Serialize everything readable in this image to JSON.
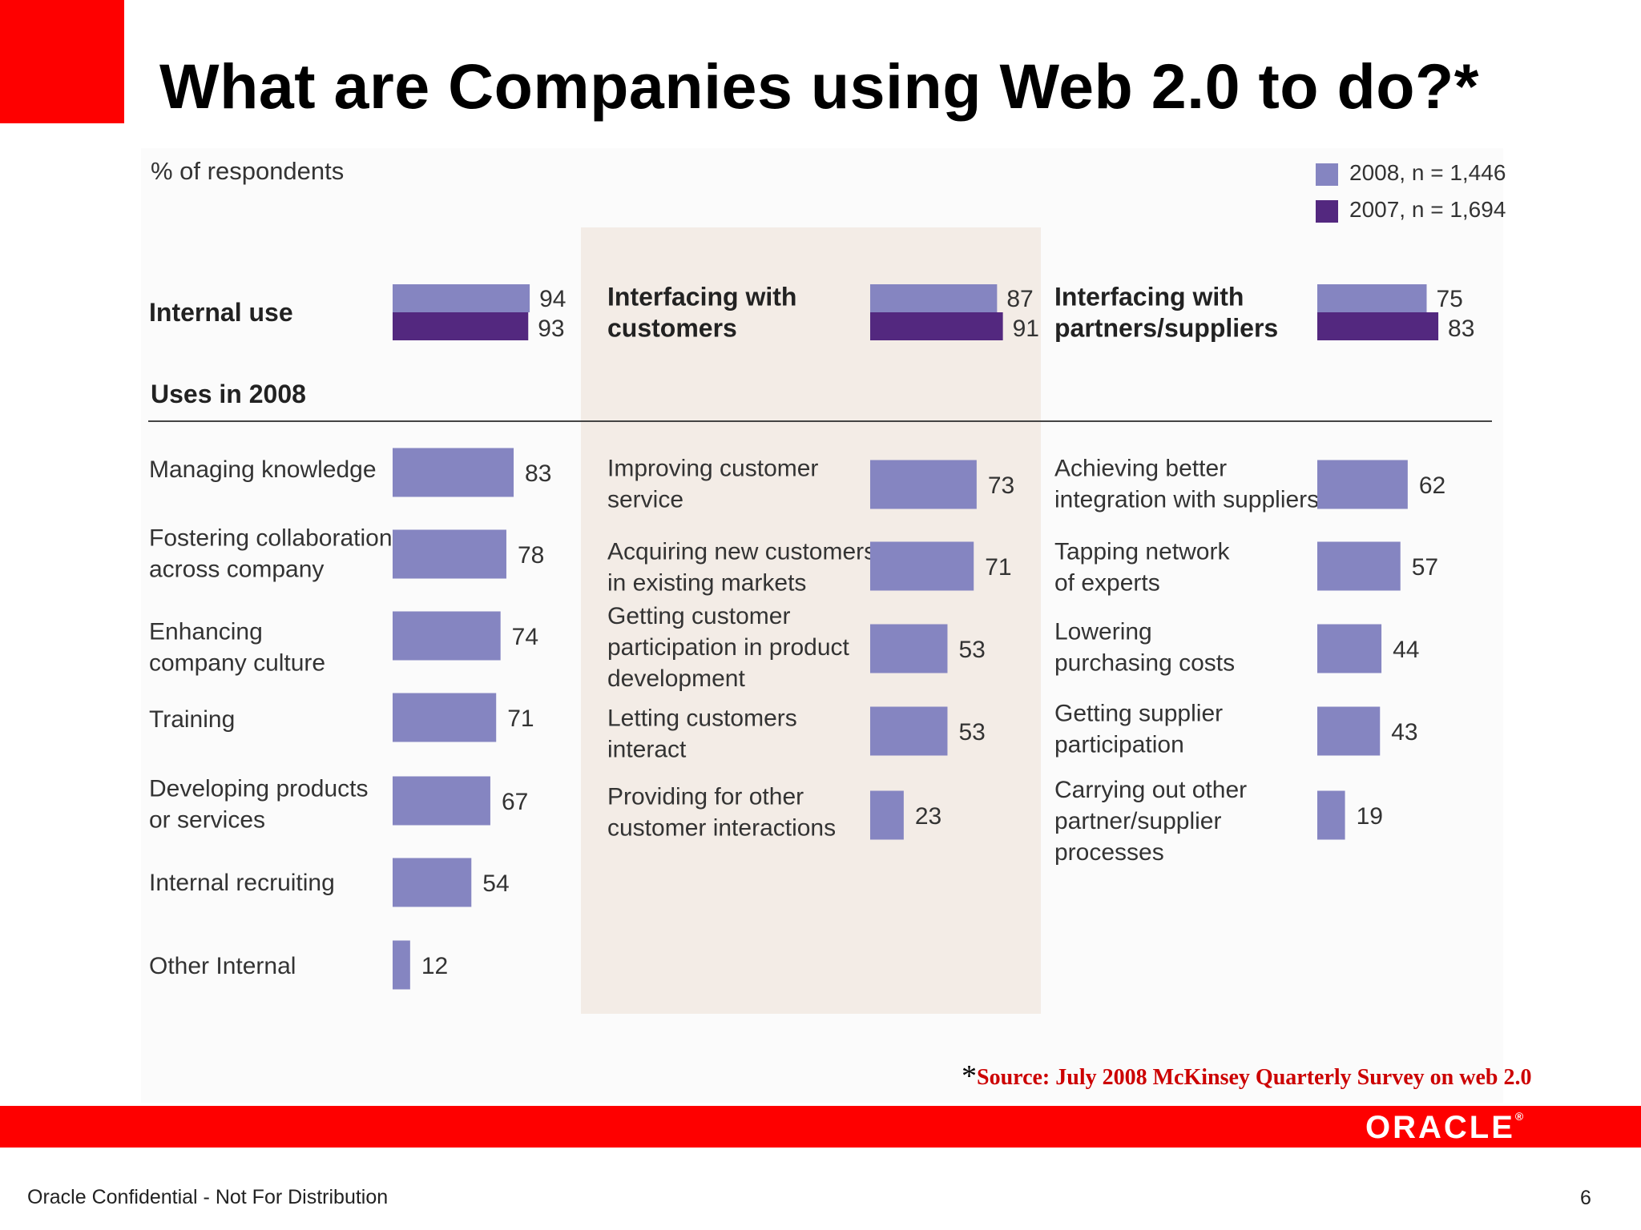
{
  "title": "What are Companies using Web 2.0 to do?*",
  "footer": {
    "confidential": "Oracle Confidential - Not For Distribution",
    "page_number": "6",
    "logo_text": "ORACLE"
  },
  "source": {
    "star": "*",
    "text": "Source: July 2008 McKinsey Quarterly Survey on web 2.0"
  },
  "colors": {
    "accent_red": "#fe0000",
    "series_2008": "#8585c1",
    "series_2007": "#53287f",
    "band": "#f3ece6"
  },
  "chart_data": {
    "type": "bar",
    "orientation": "horizontal",
    "subtitle": "% of respondents",
    "section_label": "Uses in 2008",
    "legend": [
      {
        "label": "2008, n = 1,446",
        "color": "#8585c1"
      },
      {
        "label": "2007, n = 1,694",
        "color": "#53287f"
      }
    ],
    "legend_placement": "top-right",
    "headline": [
      {
        "label": [
          "Internal use"
        ],
        "v2008": 94,
        "v2007": 93
      },
      {
        "label": [
          "Interfacing with",
          "customers"
        ],
        "v2008": 87,
        "v2007": 91
      },
      {
        "label": [
          "Interfacing with",
          "partners/suppliers"
        ],
        "v2008": 75,
        "v2007": 83
      }
    ],
    "groups": [
      {
        "name": "Internal use",
        "items": [
          {
            "label": [
              "Managing knowledge"
            ],
            "value": 83
          },
          {
            "label": [
              "Fostering collaboration",
              "across company"
            ],
            "value": 78
          },
          {
            "label": [
              "Enhancing",
              "company culture"
            ],
            "value": 74
          },
          {
            "label": [
              "Training"
            ],
            "value": 71
          },
          {
            "label": [
              "Developing products",
              "or services"
            ],
            "value": 67
          },
          {
            "label": [
              "Internal recruiting"
            ],
            "value": 54
          },
          {
            "label": [
              "Other Internal"
            ],
            "value": 12
          }
        ]
      },
      {
        "name": "Interfacing with customers",
        "items": [
          {
            "label": [
              "Improving customer",
              "service"
            ],
            "value": 73
          },
          {
            "label": [
              "Acquiring new customers",
              "in existing markets"
            ],
            "value": 71
          },
          {
            "label": [
              "Getting customer",
              "participation in product",
              "development"
            ],
            "value": 53
          },
          {
            "label": [
              "Letting customers",
              "interact"
            ],
            "value": 53
          },
          {
            "label": [
              "Providing for other",
              "customer interactions"
            ],
            "value": 23
          }
        ]
      },
      {
        "name": "Interfacing with partners/suppliers",
        "items": [
          {
            "label": [
              "Achieving better",
              "integration with suppliers"
            ],
            "value": 62
          },
          {
            "label": [
              "Tapping network",
              "of experts"
            ],
            "value": 57
          },
          {
            "label": [
              "Lowering",
              "purchasing costs"
            ],
            "value": 44
          },
          {
            "label": [
              "Getting supplier",
              "participation"
            ],
            "value": 43
          },
          {
            "label": [
              "Carrying out other",
              "partner/supplier",
              "processes"
            ],
            "value": 19
          }
        ]
      }
    ]
  }
}
